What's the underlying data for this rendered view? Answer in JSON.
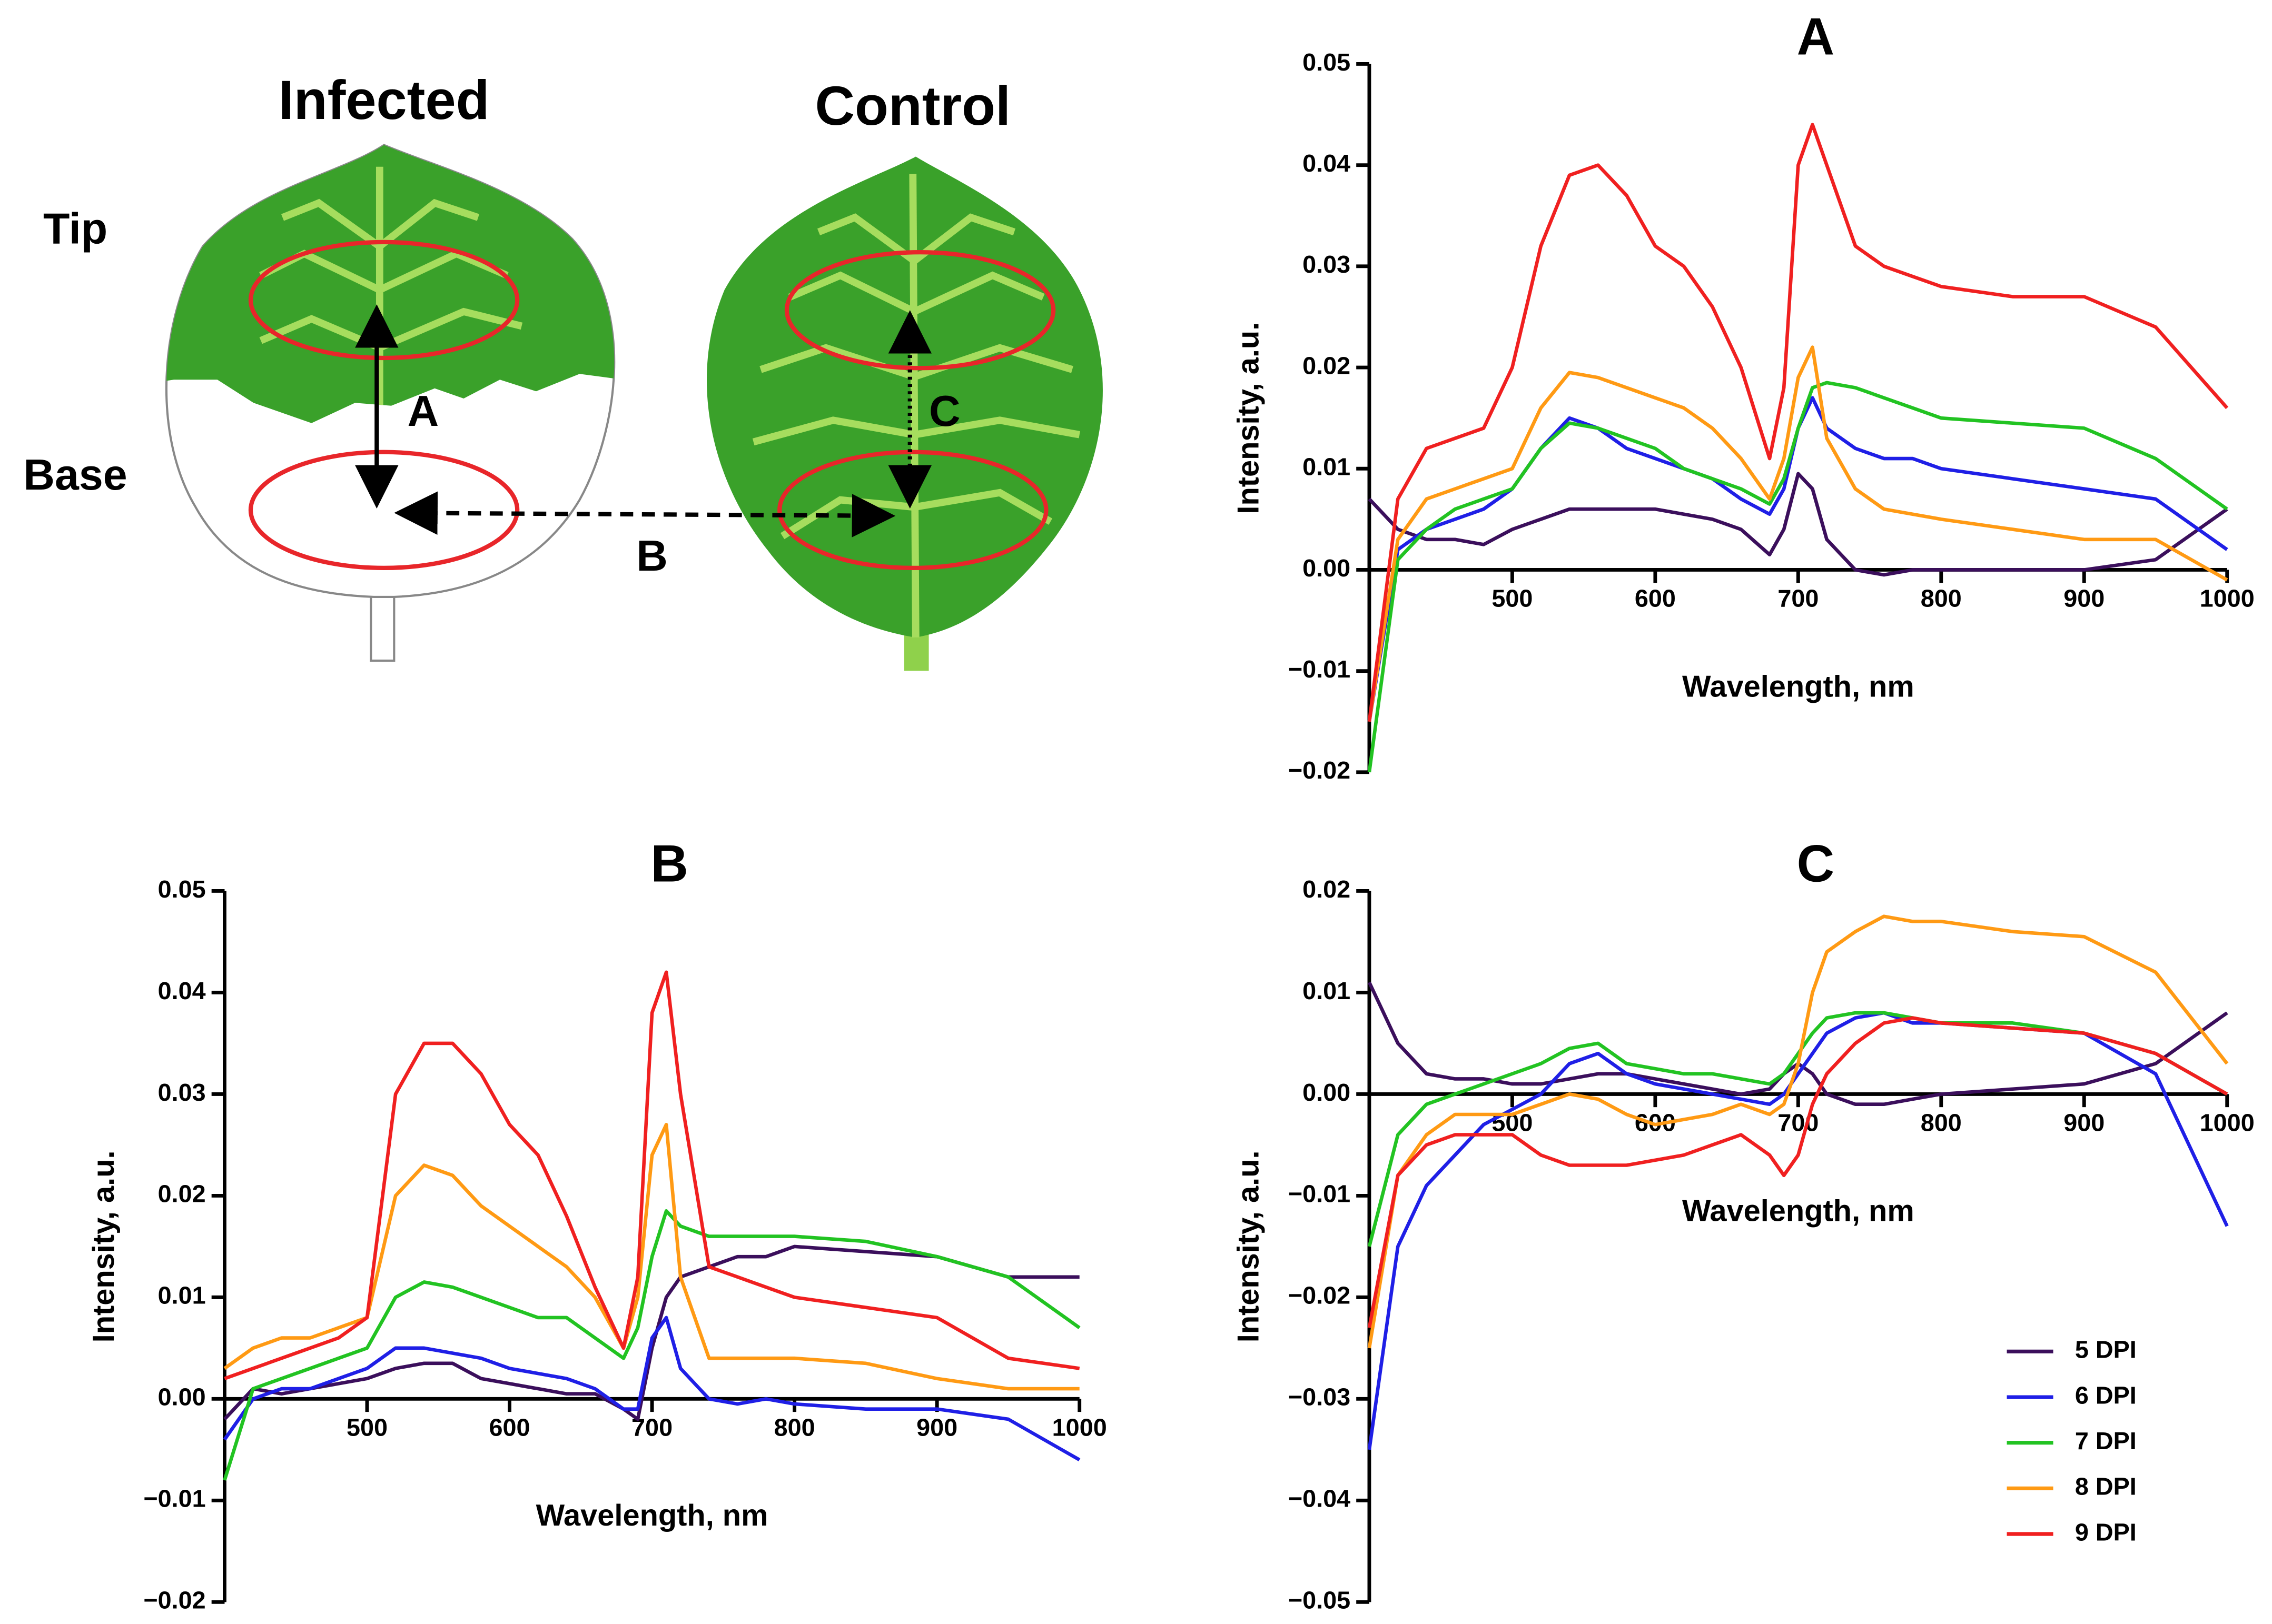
{
  "diagram": {
    "infected": "Infected",
    "control": "Control",
    "tip": "Tip",
    "base": "Base",
    "arrow_a": "A",
    "arrow_b": "B",
    "arrow_c": "C"
  },
  "chart_data": [
    {
      "type": "line",
      "title": "A",
      "xlabel": "Wavelength, nm",
      "ylabel": "Intensity, a.u.",
      "x": [
        400,
        420,
        440,
        460,
        480,
        500,
        520,
        540,
        560,
        580,
        600,
        620,
        640,
        660,
        680,
        690,
        700,
        710,
        720,
        740,
        760,
        780,
        800,
        850,
        900,
        950,
        1000
      ],
      "xlim": [
        400,
        1000
      ],
      "xticks": [
        500,
        600,
        700,
        800,
        900,
        1000
      ],
      "ylim": [
        -0.02,
        0.05
      ],
      "yticks": [
        {
          "value": -0.02,
          "label": "−0.02"
        },
        {
          "value": -0.01,
          "label": "−0.01"
        },
        {
          "value": 0,
          "label": "0.00"
        },
        0.01,
        0.02,
        0.03,
        0.04,
        0.05
      ],
      "series": [
        {
          "color": "#3b0f5c",
          "values": [
            0.007,
            0.004,
            0.003,
            0.003,
            0.0025,
            0.004,
            0.005,
            0.006,
            0.006,
            0.006,
            0.006,
            0.0055,
            0.005,
            0.004,
            0.0015,
            0.004,
            0.0095,
            0.008,
            0.003,
            0.0,
            -0.0005,
            0.0,
            0.0,
            0.0,
            0.0,
            0.001,
            0.006
          ]
        },
        {
          "color": "#1f1fe6",
          "values": [
            -0.015,
            0.002,
            0.004,
            0.005,
            0.006,
            0.008,
            0.012,
            0.015,
            0.014,
            0.012,
            0.011,
            0.01,
            0.009,
            0.007,
            0.0055,
            0.008,
            0.014,
            0.017,
            0.014,
            0.012,
            0.011,
            0.011,
            0.01,
            0.009,
            0.008,
            0.007,
            0.002
          ]
        },
        {
          "color": "#22c322",
          "values": [
            -0.02,
            0.001,
            0.004,
            0.006,
            0.007,
            0.008,
            0.012,
            0.0145,
            0.014,
            0.013,
            0.012,
            0.01,
            0.009,
            0.008,
            0.0065,
            0.009,
            0.014,
            0.018,
            0.0185,
            0.018,
            0.017,
            0.016,
            0.015,
            0.0145,
            0.014,
            0.011,
            0.006
          ]
        },
        {
          "color": "#ff9a14",
          "values": [
            -0.015,
            0.003,
            0.007,
            0.008,
            0.009,
            0.01,
            0.016,
            0.0195,
            0.019,
            0.018,
            0.017,
            0.016,
            0.014,
            0.011,
            0.007,
            0.011,
            0.019,
            0.022,
            0.013,
            0.008,
            0.006,
            0.0055,
            0.005,
            0.004,
            0.003,
            0.003,
            -0.001
          ]
        },
        {
          "color": "#f02020",
          "values": [
            -0.015,
            0.007,
            0.012,
            0.013,
            0.014,
            0.02,
            0.032,
            0.039,
            0.04,
            0.037,
            0.032,
            0.03,
            0.026,
            0.02,
            0.011,
            0.018,
            0.04,
            0.044,
            0.04,
            0.032,
            0.03,
            0.029,
            0.028,
            0.027,
            0.027,
            0.024,
            0.016
          ]
        }
      ]
    },
    {
      "type": "line",
      "title": "B",
      "xlabel": "Wavelength, nm",
      "ylabel": "Intensity, a.u.",
      "x": [
        400,
        420,
        440,
        460,
        480,
        500,
        520,
        540,
        560,
        580,
        600,
        620,
        640,
        660,
        680,
        690,
        700,
        710,
        720,
        740,
        760,
        780,
        800,
        850,
        900,
        950,
        1000
      ],
      "xlim": [
        400,
        1000
      ],
      "xticks": [
        500,
        600,
        700,
        800,
        900,
        1000
      ],
      "ylim": [
        -0.02,
        0.05
      ],
      "yticks": [
        {
          "value": -0.02,
          "label": "−0.02"
        },
        {
          "value": -0.01,
          "label": "−0.01"
        },
        {
          "value": 0,
          "label": "0.00"
        },
        0.01,
        0.02,
        0.03,
        0.04,
        0.05
      ],
      "series": [
        {
          "color": "#3b0f5c",
          "values": [
            -0.002,
            0.001,
            0.0005,
            0.001,
            0.0015,
            0.002,
            0.003,
            0.0035,
            0.0035,
            0.002,
            0.0015,
            0.001,
            0.0005,
            0.0005,
            -0.001,
            -0.002,
            0.005,
            0.01,
            0.012,
            0.013,
            0.014,
            0.014,
            0.015,
            0.0145,
            0.014,
            0.012,
            0.012
          ]
        },
        {
          "color": "#1f1fe6",
          "values": [
            -0.004,
            0.0,
            0.001,
            0.001,
            0.002,
            0.003,
            0.005,
            0.005,
            0.0045,
            0.004,
            0.003,
            0.0025,
            0.002,
            0.001,
            -0.001,
            -0.001,
            0.006,
            0.008,
            0.003,
            0.0,
            -0.0005,
            0.0,
            -0.0005,
            -0.001,
            -0.001,
            -0.002,
            -0.006
          ]
        },
        {
          "color": "#22c322",
          "values": [
            -0.008,
            0.001,
            0.002,
            0.003,
            0.004,
            0.005,
            0.01,
            0.0115,
            0.011,
            0.01,
            0.009,
            0.008,
            0.008,
            0.006,
            0.004,
            0.007,
            0.014,
            0.0185,
            0.017,
            0.016,
            0.016,
            0.016,
            0.016,
            0.0155,
            0.014,
            0.012,
            0.007
          ]
        },
        {
          "color": "#ff9a14",
          "values": [
            0.003,
            0.005,
            0.006,
            0.006,
            0.007,
            0.008,
            0.02,
            0.023,
            0.022,
            0.019,
            0.017,
            0.015,
            0.013,
            0.01,
            0.005,
            0.01,
            0.024,
            0.027,
            0.012,
            0.004,
            0.004,
            0.004,
            0.004,
            0.0035,
            0.002,
            0.001,
            0.001
          ]
        },
        {
          "color": "#f02020",
          "values": [
            0.002,
            0.003,
            0.004,
            0.005,
            0.006,
            0.008,
            0.03,
            0.035,
            0.035,
            0.032,
            0.027,
            0.024,
            0.018,
            0.011,
            0.005,
            0.012,
            0.038,
            0.042,
            0.03,
            0.013,
            0.012,
            0.011,
            0.01,
            0.009,
            0.008,
            0.004,
            0.003
          ]
        }
      ]
    },
    {
      "type": "line",
      "title": "C",
      "xlabel": "Wavelength, nm",
      "ylabel": "Intensity, a.u.",
      "x": [
        400,
        420,
        440,
        460,
        480,
        500,
        520,
        540,
        560,
        580,
        600,
        620,
        640,
        660,
        680,
        690,
        700,
        710,
        720,
        740,
        760,
        780,
        800,
        850,
        900,
        950,
        1000
      ],
      "xlim": [
        400,
        1000
      ],
      "xticks": [
        500,
        600,
        700,
        800,
        900,
        1000
      ],
      "ylim": [
        -0.05,
        0.02
      ],
      "yticks": [
        {
          "value": -0.05,
          "label": "−0.05"
        },
        {
          "value": -0.04,
          "label": "−0.04"
        },
        {
          "value": -0.03,
          "label": "−0.03"
        },
        {
          "value": -0.02,
          "label": "−0.02"
        },
        {
          "value": -0.01,
          "label": "−0.01"
        },
        {
          "value": 0,
          "label": "0.00"
        },
        0.01,
        0.02
      ],
      "legend": "lower right",
      "series": [
        {
          "name": "5 DPI",
          "color": "#3b0f5c",
          "values": [
            0.011,
            0.005,
            0.002,
            0.0015,
            0.0015,
            0.001,
            0.001,
            0.0015,
            0.002,
            0.002,
            0.0015,
            0.001,
            0.0005,
            0.0,
            0.0005,
            0.002,
            0.003,
            0.002,
            0.0,
            -0.001,
            -0.001,
            -0.0005,
            0.0,
            0.0005,
            0.001,
            0.003,
            0.008
          ]
        },
        {
          "name": "6 DPI",
          "color": "#1f1fe6",
          "values": [
            -0.035,
            -0.015,
            -0.009,
            -0.006,
            -0.003,
            -0.0015,
            0.0,
            0.003,
            0.004,
            0.002,
            0.001,
            0.0005,
            0.0,
            -0.0005,
            -0.001,
            0.0,
            0.002,
            0.004,
            0.006,
            0.0075,
            0.008,
            0.007,
            0.007,
            0.0065,
            0.006,
            0.002,
            -0.013
          ]
        },
        {
          "name": "7 DPI",
          "color": "#22c322",
          "values": [
            -0.015,
            -0.004,
            -0.001,
            0.0,
            0.001,
            0.002,
            0.003,
            0.0045,
            0.005,
            0.003,
            0.0025,
            0.002,
            0.002,
            0.0015,
            0.001,
            0.002,
            0.004,
            0.006,
            0.0075,
            0.008,
            0.008,
            0.0075,
            0.007,
            0.007,
            0.006,
            0.004,
            0.0
          ]
        },
        {
          "name": "8 DPI",
          "color": "#ff9a14",
          "values": [
            -0.025,
            -0.008,
            -0.004,
            -0.002,
            -0.002,
            -0.002,
            -0.001,
            0.0,
            -0.0005,
            -0.002,
            -0.003,
            -0.0025,
            -0.002,
            -0.001,
            -0.002,
            -0.001,
            0.003,
            0.01,
            0.014,
            0.016,
            0.0175,
            0.017,
            0.017,
            0.016,
            0.0155,
            0.012,
            0.003
          ]
        },
        {
          "name": "9 DPI",
          "color": "#f02020",
          "values": [
            -0.023,
            -0.008,
            -0.005,
            -0.004,
            -0.004,
            -0.004,
            -0.006,
            -0.007,
            -0.007,
            -0.007,
            -0.0065,
            -0.006,
            -0.005,
            -0.004,
            -0.006,
            -0.008,
            -0.006,
            -0.001,
            0.002,
            0.005,
            0.007,
            0.0075,
            0.007,
            0.0065,
            0.006,
            0.004,
            0.0
          ]
        }
      ]
    }
  ]
}
